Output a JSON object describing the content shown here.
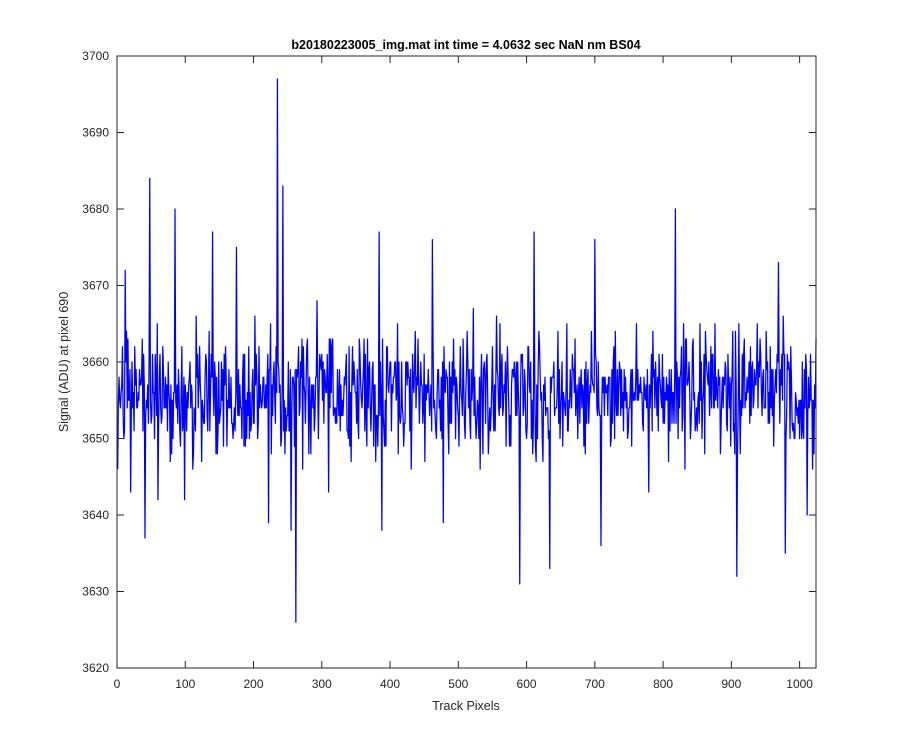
{
  "chart_data": {
    "type": "line",
    "title": "b20180223005_img.mat int time = 4.0632 sec  NaN nm BS04",
    "xlabel": "Track Pixels",
    "ylabel": "Signal (ADU) at pixel 690",
    "xlim": [
      0,
      1024
    ],
    "ylim": [
      3620,
      3700
    ],
    "xticks": [
      0,
      100,
      200,
      300,
      400,
      500,
      600,
      700,
      800,
      900,
      1000
    ],
    "yticks": [
      3620,
      3630,
      3640,
      3650,
      3660,
      3670,
      3680,
      3690,
      3700
    ],
    "grid": false,
    "legend": "none",
    "series": [
      {
        "color": "#0000ff",
        "x": [
          1,
          5,
          12,
          20,
          28,
          41,
          48,
          60,
          85,
          99,
          140,
          147,
          175,
          222,
          233,
          235,
          243,
          255,
          262,
          310,
          384,
          388,
          462,
          478,
          516,
          529,
          590,
          611,
          620,
          634,
          700,
          709,
          779,
          818,
          908,
          969,
          979,
          1004,
          1011,
          1021
        ],
        "y": [
          3646,
          3654,
          3672,
          3643,
          3659,
          3637,
          3684,
          3642,
          3680,
          3642,
          3677,
          3648,
          3675,
          3639,
          3662,
          3697,
          3683,
          3638,
          3626,
          3643,
          3677,
          3638,
          3676,
          3639,
          3659,
          3654,
          3631,
          3677,
          3658,
          3633,
          3676,
          3636,
          3643,
          3680,
          3632,
          3673,
          3635,
          3660,
          3640,
          3648
        ]
      }
    ]
  }
}
